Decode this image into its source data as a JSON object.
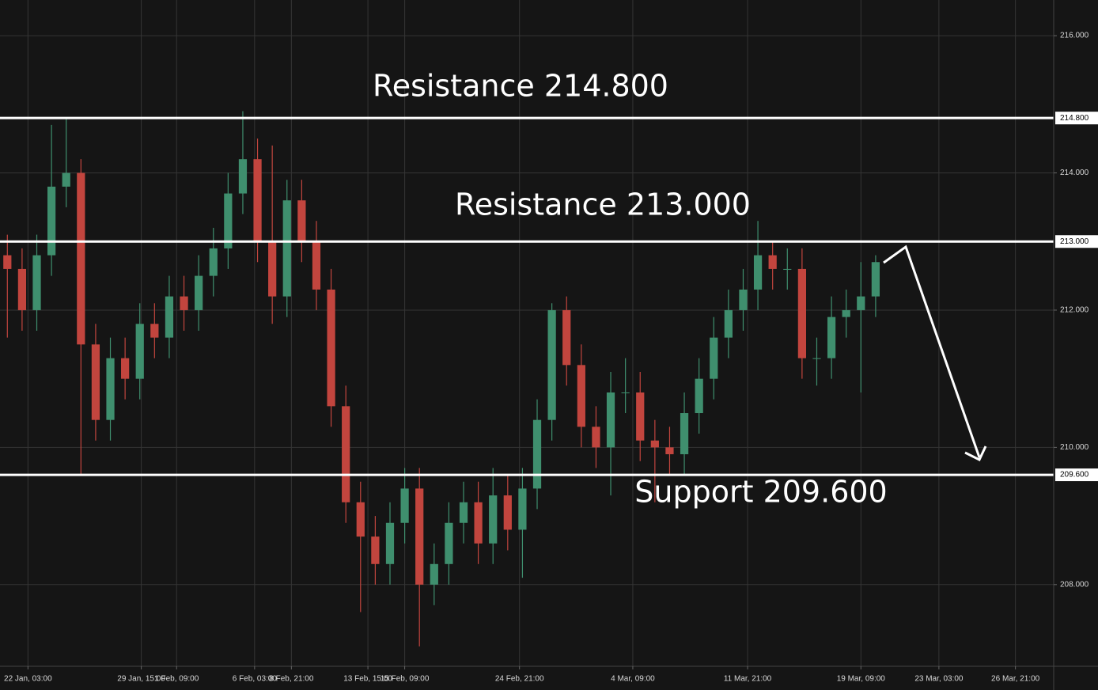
{
  "chart_data": {
    "type": "candlestick",
    "open": [
      212.8,
      212.6,
      212.0,
      212.8,
      213.8,
      214.0,
      211.5,
      210.4,
      211.3,
      211.0,
      211.8,
      211.6,
      212.2,
      212.0,
      212.5,
      212.9,
      213.7,
      214.2,
      213.0,
      212.2,
      213.6,
      213.0,
      212.3,
      210.6,
      209.2,
      208.7,
      208.3,
      208.9,
      209.4,
      208.0,
      208.3,
      208.9,
      209.2,
      208.6,
      209.3,
      208.8,
      209.4,
      210.4,
      212.0,
      211.2,
      210.3,
      210.0,
      210.8,
      210.8,
      210.1,
      210.0,
      209.9,
      210.5,
      211.0,
      211.6,
      212.0,
      212.3,
      212.8,
      212.6,
      212.6,
      211.3,
      211.3,
      211.9,
      212.0,
      212.2
    ],
    "high": [
      213.1,
      212.9,
      213.1,
      214.7,
      214.8,
      214.2,
      211.8,
      211.6,
      211.6,
      212.1,
      212.1,
      212.5,
      212.5,
      212.8,
      213.2,
      214.0,
      214.9,
      214.5,
      214.4,
      213.9,
      213.9,
      213.3,
      212.6,
      210.9,
      209.5,
      209.0,
      209.2,
      209.7,
      209.7,
      208.6,
      209.2,
      209.5,
      209.5,
      209.7,
      209.6,
      209.7,
      210.7,
      212.1,
      212.2,
      211.5,
      210.6,
      211.1,
      211.3,
      211.1,
      210.4,
      210.3,
      210.8,
      211.3,
      211.9,
      212.3,
      212.6,
      213.3,
      213.0,
      212.9,
      212.9,
      211.6,
      212.2,
      212.3,
      212.7,
      212.8
    ],
    "low": [
      211.6,
      211.7,
      211.7,
      212.5,
      213.5,
      209.6,
      210.1,
      210.1,
      210.7,
      210.7,
      211.3,
      211.3,
      211.7,
      211.7,
      212.2,
      212.6,
      213.4,
      212.7,
      211.8,
      211.9,
      212.7,
      212.0,
      210.3,
      208.9,
      207.6,
      208.0,
      208.0,
      208.6,
      207.1,
      207.7,
      208.0,
      208.6,
      208.3,
      208.3,
      208.5,
      208.1,
      209.1,
      210.1,
      210.9,
      210.0,
      209.7,
      209.3,
      210.5,
      209.8,
      209.2,
      209.6,
      209.6,
      210.2,
      210.7,
      211.3,
      211.7,
      212.0,
      212.3,
      212.3,
      211.0,
      210.9,
      211.0,
      211.6,
      210.8,
      211.9
    ],
    "close": [
      212.6,
      212.0,
      212.8,
      213.8,
      214.0,
      211.5,
      210.4,
      211.3,
      211.0,
      211.8,
      211.6,
      212.2,
      212.0,
      212.5,
      212.9,
      213.7,
      214.2,
      213.0,
      212.2,
      213.6,
      213.0,
      212.3,
      210.6,
      209.2,
      208.7,
      208.3,
      208.9,
      209.4,
      208.0,
      208.3,
      208.9,
      209.2,
      208.6,
      209.3,
      208.8,
      209.4,
      210.4,
      212.0,
      211.2,
      210.3,
      210.0,
      210.8,
      210.8,
      210.1,
      210.0,
      209.9,
      210.5,
      211.0,
      211.6,
      212.0,
      212.3,
      212.8,
      212.6,
      212.6,
      211.3,
      211.3,
      211.9,
      212.0,
      212.2,
      212.7
    ],
    "up_color": "#3f8f6e",
    "down_color": "#c2453e",
    "xlim": [
      -0.5,
      71.1
    ],
    "xticks": [
      {
        "value": 1.4,
        "label": "22 Jan, 03:00"
      },
      {
        "value": 9.1,
        "label": "29 Jan, 15:00"
      },
      {
        "value": 11.5,
        "label": "1 Feb, 09:00"
      },
      {
        "value": 16.8,
        "label": "6 Feb, 03:00"
      },
      {
        "value": 19.3,
        "label": "8 Feb, 21:00"
      },
      {
        "value": 24.5,
        "label": "13 Feb, 15:00"
      },
      {
        "value": 27.0,
        "label": "15 Feb, 09:00"
      },
      {
        "value": 34.8,
        "label": "24 Feb, 21:00"
      },
      {
        "value": 42.5,
        "label": "4 Mar, 09:00"
      },
      {
        "value": 50.3,
        "label": "11 Mar, 21:00"
      },
      {
        "value": 58.0,
        "label": "19 Mar, 09:00"
      },
      {
        "value": 63.3,
        "label": "23 Mar, 03:00"
      },
      {
        "value": 68.5,
        "label": "26 Mar, 21:00"
      }
    ],
    "ylim": [
      206.81,
      216.52
    ],
    "yticks": [
      {
        "value": 208,
        "label": "208.000"
      },
      {
        "value": 210,
        "label": "210.000"
      },
      {
        "value": 212,
        "label": "212.000"
      },
      {
        "value": 214,
        "label": "214.000"
      },
      {
        "value": 216,
        "label": "216.000"
      }
    ],
    "grid": true,
    "levels": [
      {
        "value": 214.8,
        "label": "Resistance 214.800",
        "axis_label": "214.800"
      },
      {
        "value": 213.0,
        "label": "Resistance 213.000",
        "axis_label": "213.000"
      },
      {
        "value": 209.6,
        "label": "Support 209.600",
        "axis_label": "209.600"
      }
    ]
  }
}
